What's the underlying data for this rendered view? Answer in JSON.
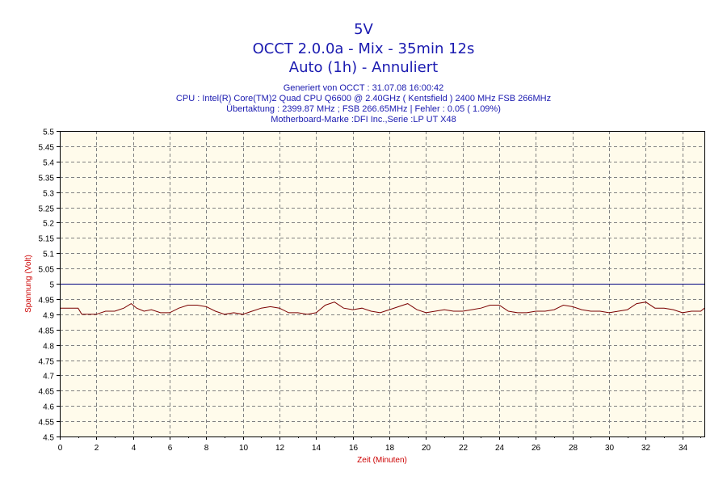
{
  "header": {
    "title": "5V",
    "subtitle1": "OCCT 2.0.0a - Mix - 35min 12s",
    "subtitle2": "Auto (1h) - Annuliert",
    "info": [
      "Generiert von OCCT : 31.07.08 16:00:42",
      "CPU : Intel(R) Core(TM)2 Quad CPU Q6600 @ 2.40GHz ( Kentsfield ) 2400 MHz FSB 266MHz",
      "Übertaktung : 2399.87 MHz ; FSB 266.65MHz | Fehler : 0.05 ( 1.09%)",
      "Motherboard-Marke :DFI Inc.,Serie :LP UT X48"
    ]
  },
  "colors": {
    "plot_bg": "#fffbeb",
    "grid": "#808080",
    "reference_line": "#000080",
    "series": "#7a0000",
    "axis_label": "#cc0000",
    "text": "#1a1ab0"
  },
  "chart_data": {
    "type": "line",
    "title": "5V",
    "xlabel": "Zeit (Minuten)",
    "ylabel": "Spannung (Volt)",
    "xlim": [
      0,
      35.2
    ],
    "ylim": [
      4.5,
      5.5
    ],
    "xticks": [
      0,
      2,
      4,
      6,
      8,
      10,
      12,
      14,
      16,
      18,
      20,
      22,
      24,
      26,
      28,
      30,
      32,
      34
    ],
    "xtick_labels": [
      "0",
      "2",
      "4",
      "6",
      "8",
      "10",
      "12",
      "14",
      "16",
      "18",
      "20",
      "22",
      "24",
      "26",
      "28",
      "30",
      "32",
      "34"
    ],
    "yticks": [
      4.5,
      4.55,
      4.6,
      4.65,
      4.7,
      4.75,
      4.8,
      4.85,
      4.9,
      4.95,
      5.0,
      5.05,
      5.1,
      5.15,
      5.2,
      5.25,
      5.3,
      5.35,
      5.4,
      5.45,
      5.5
    ],
    "ytick_labels": [
      "4.5",
      "4.55",
      "4.6",
      "4.65",
      "4.7",
      "4.75",
      "4.8",
      "4.85",
      "4.9",
      "4.95",
      "5",
      "5.05",
      "5.1",
      "5.15",
      "5.2",
      "5.25",
      "5.3",
      "5.35",
      "5.4",
      "5.45",
      "5.5"
    ],
    "grid": true,
    "reference_line": 5.0,
    "series": [
      {
        "x": [
          0,
          0.5,
          1.0,
          1.2,
          1.5,
          2.0,
          2.5,
          3.0,
          3.5,
          3.9,
          4.2,
          4.6,
          5.0,
          5.5,
          6.0,
          6.5,
          7.0,
          7.5,
          8.0,
          8.5,
          9.0,
          9.5,
          10.0,
          10.5,
          11.0,
          11.5,
          12.0,
          12.5,
          13.0,
          13.5,
          14.0,
          14.5,
          15.0,
          15.5,
          16.0,
          16.5,
          17.0,
          17.5,
          18.0,
          18.5,
          19.0,
          19.5,
          20.0,
          20.5,
          21.0,
          21.5,
          22.0,
          22.5,
          23.0,
          23.5,
          24.0,
          24.5,
          25.0,
          25.5,
          26.0,
          26.5,
          27.0,
          27.5,
          28.0,
          28.5,
          29.0,
          29.5,
          30.0,
          30.5,
          31.0,
          31.5,
          32.0,
          32.5,
          33.0,
          33.5,
          34.0,
          34.5,
          35.0,
          35.2
        ],
        "y": [
          4.92,
          4.92,
          4.92,
          4.9,
          4.9,
          4.9,
          4.91,
          4.91,
          4.92,
          4.935,
          4.92,
          4.91,
          4.915,
          4.905,
          4.905,
          4.92,
          4.93,
          4.93,
          4.925,
          4.91,
          4.9,
          4.905,
          4.9,
          4.91,
          4.92,
          4.925,
          4.92,
          4.905,
          4.905,
          4.9,
          4.905,
          4.93,
          4.94,
          4.92,
          4.915,
          4.92,
          4.91,
          4.905,
          4.915,
          4.925,
          4.935,
          4.915,
          4.905,
          4.91,
          4.915,
          4.91,
          4.91,
          4.915,
          4.92,
          4.93,
          4.93,
          4.91,
          4.905,
          4.905,
          4.91,
          4.91,
          4.915,
          4.93,
          4.925,
          4.915,
          4.91,
          4.91,
          4.905,
          4.91,
          4.915,
          4.935,
          4.94,
          4.92,
          4.92,
          4.915,
          4.905,
          4.91,
          4.91,
          4.92
        ]
      }
    ]
  }
}
